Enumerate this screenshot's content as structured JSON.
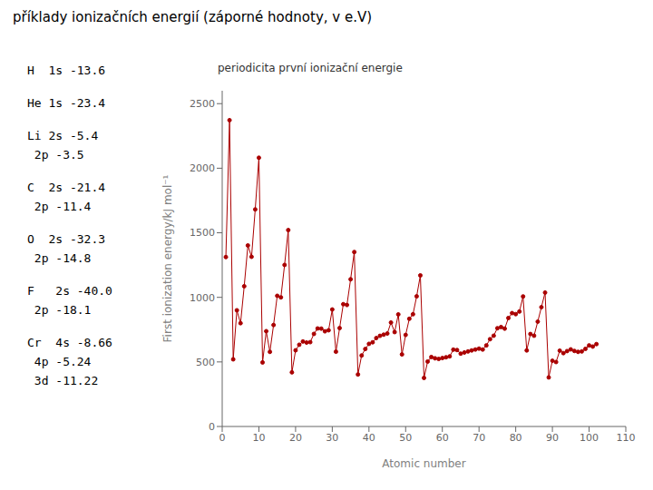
{
  "chart_data": {
    "type": "line",
    "title": "příklady ionizačních energií (záporné hodnoty, v e.V)",
    "subtitle": "periodicita první ionizační energie",
    "annotations": [
      "H  1s -13.6",
      "He 1s -23.4",
      "Li 2s -5.4",
      " 2p -3.5",
      "C  2s -21.4",
      " 2p -11.4",
      "O  2s -32.3",
      " 2p -14.8",
      "F   2s -40.0",
      " 2p -18.1",
      "Cr  4s -8.66",
      " 4p -5.24",
      " 3d -11.22"
    ],
    "xlabel": "Atomic number",
    "ylabel": "First ionization energy/kJ mol⁻¹",
    "xlim": [
      0,
      110
    ],
    "ylim": [
      0,
      2600
    ],
    "xticks": [
      0,
      10,
      20,
      30,
      40,
      50,
      60,
      70,
      80,
      90,
      100,
      110
    ],
    "yticks": [
      0,
      500,
      1000,
      1500,
      2000,
      2500
    ],
    "color": "#aa0000",
    "marker": "o",
    "x": [
      1,
      2,
      3,
      4,
      5,
      6,
      7,
      8,
      9,
      10,
      11,
      12,
      13,
      14,
      15,
      16,
      17,
      18,
      19,
      20,
      21,
      22,
      23,
      24,
      25,
      26,
      27,
      28,
      29,
      30,
      31,
      32,
      33,
      34,
      35,
      36,
      37,
      38,
      39,
      40,
      41,
      42,
      43,
      44,
      45,
      46,
      47,
      48,
      49,
      50,
      51,
      52,
      53,
      54,
      55,
      56,
      57,
      58,
      59,
      60,
      61,
      62,
      63,
      64,
      65,
      66,
      67,
      68,
      69,
      70,
      71,
      72,
      73,
      74,
      75,
      76,
      77,
      78,
      79,
      80,
      81,
      82,
      83,
      84,
      85,
      86,
      87,
      88,
      89,
      90,
      91,
      92,
      93,
      94,
      95,
      96,
      97,
      98,
      99,
      100,
      101,
      102
    ],
    "values": [
      1312,
      2372,
      520,
      900,
      800,
      1086,
      1402,
      1314,
      1681,
      2081,
      496,
      738,
      578,
      786,
      1012,
      1000,
      1251,
      1521,
      419,
      590,
      633,
      658,
      650,
      653,
      717,
      759,
      758,
      737,
      745,
      906,
      579,
      762,
      947,
      941,
      1140,
      1351,
      403,
      550,
      600,
      640,
      652,
      685,
      702,
      711,
      720,
      805,
      731,
      868,
      558,
      709,
      834,
      869,
      1008,
      1170,
      376,
      503,
      538,
      528,
      523,
      530,
      536,
      543,
      595,
      592,
      564,
      573,
      581,
      589,
      596,
      603,
      596,
      628,
      676,
      703,
      761,
      770,
      758,
      840,
      878,
      870,
      890,
      1007,
      589,
      716,
      703,
      812,
      924,
      1037,
      380,
      509,
      499,
      587,
      568,
      584,
      597,
      585,
      578,
      581,
      601,
      628,
      619,
      638
    ]
  }
}
